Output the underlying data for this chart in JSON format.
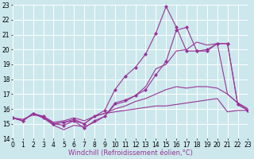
{
  "xlabel": "Windchill (Refroidissement éolien,°C)",
  "bg_color": "#cce8ec",
  "grid_color": "#ffffff",
  "line_color": "#993399",
  "x": [
    0,
    1,
    2,
    3,
    4,
    5,
    6,
    7,
    8,
    9,
    10,
    11,
    12,
    13,
    14,
    15,
    16,
    17,
    18,
    19,
    20,
    21,
    22,
    23
  ],
  "series": [
    {
      "y": [
        15.4,
        15.2,
        15.7,
        15.4,
        14.9,
        14.6,
        14.9,
        14.8,
        15.1,
        15.5,
        16.3,
        16.5,
        16.9,
        17.5,
        18.7,
        19.0,
        19.9,
        20.0,
        20.5,
        20.3,
        20.4,
        17.0,
        16.4,
        16.0
      ],
      "has_markers": false
    },
    {
      "y": [
        15.4,
        15.2,
        15.7,
        15.4,
        15.0,
        14.9,
        15.2,
        14.7,
        15.2,
        15.5,
        16.4,
        16.6,
        16.9,
        17.3,
        18.3,
        19.2,
        21.3,
        21.5,
        19.9,
        19.9,
        20.4,
        20.4,
        16.3,
        15.9
      ],
      "has_markers": true
    },
    {
      "y": [
        15.4,
        15.2,
        15.7,
        15.4,
        15.0,
        15.1,
        15.2,
        15.0,
        15.5,
        15.7,
        16.0,
        16.2,
        16.5,
        16.7,
        17.0,
        17.3,
        17.5,
        17.4,
        17.5,
        17.5,
        17.4,
        17.0,
        16.4,
        16.0
      ],
      "has_markers": false
    },
    {
      "y": [
        15.4,
        15.2,
        15.7,
        15.5,
        15.0,
        15.1,
        15.3,
        15.0,
        15.5,
        15.9,
        17.3,
        18.2,
        18.8,
        19.7,
        21.1,
        22.9,
        21.5,
        19.9,
        19.9,
        20.0,
        20.4,
        20.4,
        16.3,
        15.9
      ],
      "has_markers": true
    },
    {
      "y": [
        15.4,
        15.3,
        15.6,
        15.5,
        15.1,
        15.2,
        15.4,
        15.2,
        15.5,
        15.7,
        15.8,
        15.9,
        16.0,
        16.1,
        16.2,
        16.2,
        16.3,
        16.4,
        16.5,
        16.6,
        16.7,
        15.8,
        15.9,
        15.9
      ],
      "has_markers": false
    }
  ],
  "ylim": [
    14,
    23
  ],
  "xlim": [
    0,
    23
  ],
  "yticks": [
    14,
    15,
    16,
    17,
    18,
    19,
    20,
    21,
    22,
    23
  ],
  "xticks": [
    0,
    1,
    2,
    3,
    4,
    5,
    6,
    7,
    8,
    9,
    10,
    11,
    12,
    13,
    14,
    15,
    16,
    17,
    18,
    19,
    20,
    21,
    22,
    23
  ],
  "marker": "D",
  "marker_size": 2.0,
  "linewidth": 0.8,
  "font_size": 6.0,
  "tick_font_size": 5.5
}
